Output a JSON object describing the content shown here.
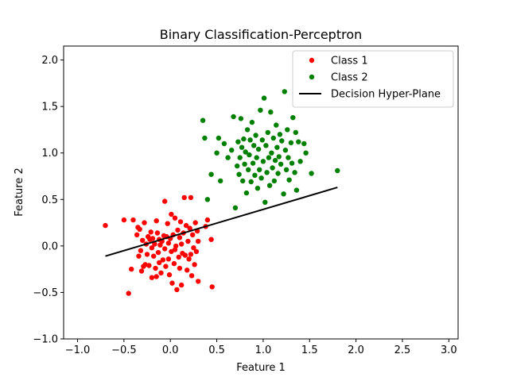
{
  "chart_data": {
    "type": "scatter",
    "title": "Binary Classification-Perceptron",
    "xlabel": "Feature 1",
    "ylabel": "Feature 2",
    "xlim": [
      -1.15,
      3.1
    ],
    "ylim": [
      -1.0,
      2.15
    ],
    "xticks": [
      -1.0,
      -0.5,
      0.0,
      0.5,
      1.0,
      1.5,
      2.0,
      2.5,
      3.0
    ],
    "xtick_labels": [
      "−1.0",
      "−0.5",
      "0.0",
      "0.5",
      "1.0",
      "1.5",
      "2.0",
      "2.5",
      "3.0"
    ],
    "yticks": [
      -1.0,
      -0.5,
      0.0,
      0.5,
      1.0,
      1.5,
      2.0
    ],
    "ytick_labels": [
      "−1.0",
      "−0.5",
      "0.0",
      "0.5",
      "1.0",
      "1.5",
      "2.0"
    ],
    "grid": false,
    "legend_position": "top-right",
    "series": [
      {
        "name": "Class 1",
        "kind": "scatter",
        "color": "#ff0000",
        "points": [
          [
            -0.7,
            0.22
          ],
          [
            -0.5,
            0.28
          ],
          [
            -0.45,
            -0.51
          ],
          [
            -0.42,
            -0.25
          ],
          [
            -0.4,
            0.28
          ],
          [
            -0.36,
            0.12
          ],
          [
            -0.35,
            0.2
          ],
          [
            -0.34,
            -0.11
          ],
          [
            -0.33,
            0.18
          ],
          [
            -0.32,
            -0.05
          ],
          [
            -0.31,
            -0.27
          ],
          [
            -0.3,
            0.06
          ],
          [
            -0.29,
            -0.22
          ],
          [
            -0.28,
            0.25
          ],
          [
            -0.27,
            -0.2
          ],
          [
            -0.26,
            0.02
          ],
          [
            -0.25,
            -0.09
          ],
          [
            -0.24,
            0.1
          ],
          [
            -0.23,
            -0.21
          ],
          [
            -0.22,
            0.07
          ],
          [
            -0.21,
            0.15
          ],
          [
            -0.2,
            -0.02
          ],
          [
            -0.2,
            -0.34
          ],
          [
            -0.19,
            0.08
          ],
          [
            -0.18,
            -0.11
          ],
          [
            -0.17,
            0.02
          ],
          [
            -0.16,
            -0.24
          ],
          [
            -0.15,
            0.27
          ],
          [
            -0.15,
            -0.33
          ],
          [
            -0.14,
            0.14
          ],
          [
            -0.13,
            -0.07
          ],
          [
            -0.12,
            0.07
          ],
          [
            -0.12,
            -0.18
          ],
          [
            -0.11,
            0.01
          ],
          [
            -0.1,
            -0.29
          ],
          [
            -0.09,
            0.05
          ],
          [
            -0.08,
            -0.15
          ],
          [
            -0.07,
            0.11
          ],
          [
            -0.06,
            -0.03
          ],
          [
            -0.06,
            0.48
          ],
          [
            -0.05,
            -0.22
          ],
          [
            -0.04,
            0.1
          ],
          [
            -0.03,
            0.24
          ],
          [
            -0.02,
            -0.14
          ],
          [
            -0.02,
            0.03
          ],
          [
            -0.01,
            -0.31
          ],
          [
            0.0,
            0.08
          ],
          [
            0.01,
            0.34
          ],
          [
            0.01,
            -0.06
          ],
          [
            0.02,
            -0.4
          ],
          [
            0.03,
            0.12
          ],
          [
            0.04,
            -0.19
          ],
          [
            0.05,
            0.3
          ],
          [
            0.05,
            -0.04
          ],
          [
            0.06,
            0.0
          ],
          [
            0.07,
            -0.47
          ],
          [
            0.08,
            0.17
          ],
          [
            0.09,
            -0.12
          ],
          [
            0.1,
            0.09
          ],
          [
            0.1,
            -0.24
          ],
          [
            0.11,
            0.26
          ],
          [
            0.12,
            0.02
          ],
          [
            0.12,
            -0.42
          ],
          [
            0.13,
            -0.08
          ],
          [
            0.14,
            0.14
          ],
          [
            0.15,
            0.52
          ],
          [
            0.16,
            -0.1
          ],
          [
            0.17,
            0.22
          ],
          [
            0.18,
            -0.26
          ],
          [
            0.19,
            0.05
          ],
          [
            0.2,
            -0.14
          ],
          [
            0.21,
            0.19
          ],
          [
            0.22,
            -0.09
          ],
          [
            0.22,
            0.52
          ],
          [
            0.23,
            -0.32
          ],
          [
            0.24,
            0.12
          ],
          [
            0.25,
            -0.02
          ],
          [
            0.26,
            -0.2
          ],
          [
            0.27,
            0.25
          ],
          [
            0.28,
            -0.06
          ],
          [
            0.29,
            0.16
          ],
          [
            0.3,
            -0.38
          ],
          [
            0.3,
            0.05
          ],
          [
            0.38,
            0.21
          ],
          [
            0.4,
            0.28
          ],
          [
            0.44,
            0.07
          ],
          [
            0.45,
            -0.44
          ]
        ]
      },
      {
        "name": "Class 2",
        "kind": "scatter",
        "color": "#008000",
        "points": [
          [
            0.35,
            1.35
          ],
          [
            0.37,
            1.16
          ],
          [
            0.4,
            0.5
          ],
          [
            0.44,
            0.77
          ],
          [
            0.5,
            1.0
          ],
          [
            0.52,
            1.16
          ],
          [
            0.54,
            0.7
          ],
          [
            0.58,
            1.1
          ],
          [
            0.62,
            0.95
          ],
          [
            0.66,
            1.03
          ],
          [
            0.68,
            1.39
          ],
          [
            0.7,
            0.41
          ],
          [
            0.72,
            0.86
          ],
          [
            0.73,
            1.12
          ],
          [
            0.74,
            0.77
          ],
          [
            0.75,
            0.95
          ],
          [
            0.76,
            1.37
          ],
          [
            0.77,
            1.06
          ],
          [
            0.78,
            0.7
          ],
          [
            0.79,
            1.15
          ],
          [
            0.8,
            0.88
          ],
          [
            0.81,
            1.01
          ],
          [
            0.82,
            0.57
          ],
          [
            0.83,
            1.25
          ],
          [
            0.84,
            0.82
          ],
          [
            0.85,
            0.98
          ],
          [
            0.86,
            1.14
          ],
          [
            0.87,
            0.69
          ],
          [
            0.88,
            1.33
          ],
          [
            0.89,
            0.89
          ],
          [
            0.9,
            1.08
          ],
          [
            0.91,
            0.76
          ],
          [
            0.92,
            1.19
          ],
          [
            0.93,
            0.95
          ],
          [
            0.94,
            0.62
          ],
          [
            0.95,
            1.04
          ],
          [
            0.96,
            0.82
          ],
          [
            0.97,
            1.46
          ],
          [
            0.98,
            0.73
          ],
          [
            0.99,
            1.14
          ],
          [
            1.0,
            0.91
          ],
          [
            1.01,
            1.59
          ],
          [
            1.02,
            0.47
          ],
          [
            1.03,
            1.08
          ],
          [
            1.04,
            0.79
          ],
          [
            1.05,
            1.22
          ],
          [
            1.06,
            0.95
          ],
          [
            1.07,
            0.65
          ],
          [
            1.08,
            1.44
          ],
          [
            1.09,
            1.0
          ],
          [
            1.1,
            0.84
          ],
          [
            1.11,
            1.16
          ],
          [
            1.12,
            0.7
          ],
          [
            1.13,
            0.92
          ],
          [
            1.14,
            1.3
          ],
          [
            1.15,
            1.06
          ],
          [
            1.16,
            0.78
          ],
          [
            1.17,
            0.96
          ],
          [
            1.18,
            1.2
          ],
          [
            1.19,
            0.88
          ],
          [
            1.2,
            1.13
          ],
          [
            1.22,
            0.56
          ],
          [
            1.23,
            1.66
          ],
          [
            1.24,
            1.03
          ],
          [
            1.25,
            0.82
          ],
          [
            1.26,
            1.25
          ],
          [
            1.27,
            0.95
          ],
          [
            1.28,
            0.71
          ],
          [
            1.3,
            1.11
          ],
          [
            1.31,
            0.89
          ],
          [
            1.32,
            1.38
          ],
          [
            1.34,
            0.79
          ],
          [
            1.35,
            1.22
          ],
          [
            1.36,
            0.6
          ],
          [
            1.38,
            1.12
          ],
          [
            1.4,
            0.91
          ],
          [
            1.44,
            1.1
          ],
          [
            1.46,
            1.0
          ],
          [
            1.52,
            0.78
          ],
          [
            1.8,
            0.81
          ]
        ]
      },
      {
        "name": "Decision Hyper-Plane",
        "kind": "line",
        "color": "#000000",
        "points": [
          [
            -0.7,
            -0.11
          ],
          [
            1.8,
            0.63
          ]
        ]
      }
    ]
  }
}
